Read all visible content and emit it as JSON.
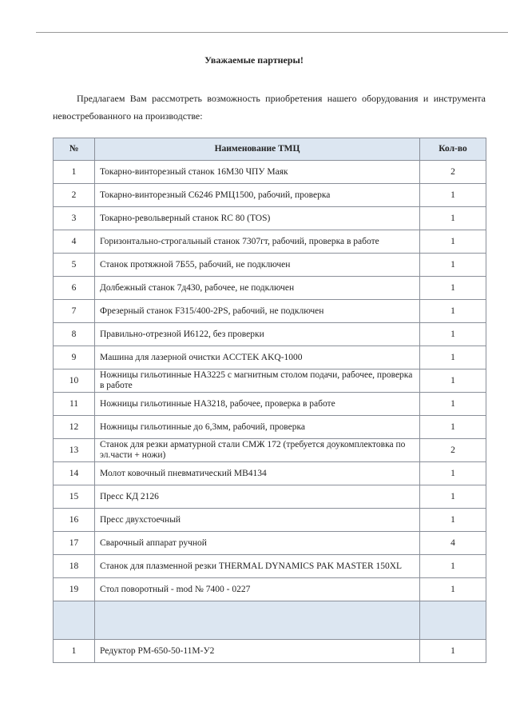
{
  "title": "Уважаемые партнеры!",
  "intro": "Предлагаем Вам рассмотреть возможность приобретения нашего оборудования и инструмента невостребованного на производстве:",
  "table": {
    "headers": [
      "№",
      "Наименование ТМЦ",
      "Кол-во"
    ],
    "rows": [
      {
        "n": "1",
        "name": "Токарно-винторезный станок 16М30 ЧПУ Маяк",
        "qty": "2"
      },
      {
        "n": "2",
        "name": "Токарно-винторезный С6246 РМЦ1500, рабочий, проверка",
        "qty": "1"
      },
      {
        "n": "3",
        "name": "Токарно-револьверный станок RC 80 (TOS)",
        "qty": "1"
      },
      {
        "n": "4",
        "name": "Горизонтально-строгальный станок 7307гт, рабочий, проверка в работе",
        "qty": "1"
      },
      {
        "n": "5",
        "name": "Станок протяжной 7Б55, рабочий, не подключен",
        "qty": "1"
      },
      {
        "n": "6",
        "name": "Долбежный станок 7д430, рабочее, не подключен",
        "qty": "1"
      },
      {
        "n": "7",
        "name": "Фрезерный станок F315/400-2PS, рабочий, не подключен",
        "qty": "1"
      },
      {
        "n": "8",
        "name": "Правильно-отрезной И6122, без проверки",
        "qty": "1"
      },
      {
        "n": "9",
        "name": "Машина для лазерной очистки ACCTEK AKQ-1000",
        "qty": "1"
      },
      {
        "n": "10",
        "name": "Ножницы гильотинные НА3225 с магнитным столом подачи, рабочее, проверка в работе",
        "qty": "1"
      },
      {
        "n": "11",
        "name": "Ножницы гильотинные НА3218, рабочее, проверка в работе",
        "qty": "1"
      },
      {
        "n": "12",
        "name": "Ножницы гильотинные до 6,3мм, рабочий, проверка",
        "qty": "1"
      },
      {
        "n": "13",
        "name": "Станок для резки арматурной стали СМЖ 172 (требуется доукомплектовка  по эл.части + ножи)",
        "qty": "2"
      },
      {
        "n": "14",
        "name": "Молот ковочный пневматический МВ4134",
        "qty": "1"
      },
      {
        "n": "15",
        "name": "Пресс КД 2126",
        "qty": "1"
      },
      {
        "n": "16",
        "name": "Пресс двухстоечный",
        "qty": "1"
      },
      {
        "n": "17",
        "name": "Сварочный аппарат ручной",
        "qty": "4"
      },
      {
        "n": "18",
        "name": "Станок для плазменной резки THERMAL DYNAMICS PAK MASTER 150XL",
        "qty": "1"
      },
      {
        "n": "19",
        "name": "Стол поворотный - mod № 7400 - 0227",
        "qty": "1"
      }
    ],
    "extra_rows": [
      {
        "n": "1",
        "name": "Редуктор РМ-650-50-11М-У2",
        "qty": "1"
      }
    ]
  },
  "colors": {
    "header_bg": "#dce6f1",
    "border": "#8a8f99"
  }
}
